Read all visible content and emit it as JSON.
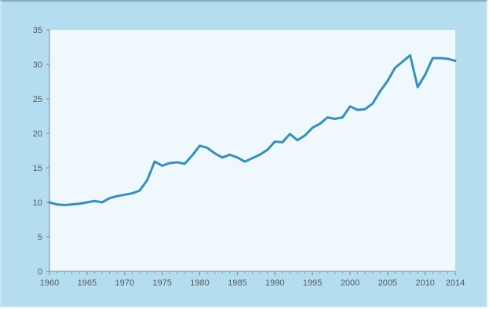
{
  "chart_data": {
    "type": "line",
    "title": "",
    "xlabel": "",
    "ylabel": "",
    "xlim": [
      1960,
      2014
    ],
    "ylim": [
      0,
      35
    ],
    "grid": false,
    "legend": "none",
    "x_ticks": [
      "1960",
      "1965",
      "1970",
      "1975",
      "1980",
      "1985",
      "1990",
      "1995",
      "2000",
      "2005",
      "2010",
      "2014"
    ],
    "y_ticks": [
      "0",
      "5",
      "10",
      "15",
      "20",
      "25",
      "30",
      "35"
    ],
    "colors": {
      "line": "#3a8fb7",
      "plot_bg": "#eef8fd",
      "frame_bg": "#b5ddf0",
      "axis": "#7a8a94"
    },
    "series": [
      {
        "x": [
          1960,
          1961,
          1962,
          1963,
          1964,
          1965,
          1966,
          1967,
          1968,
          1969,
          1970,
          1971,
          1972,
          1973,
          1974,
          1975,
          1976,
          1977,
          1978,
          1979,
          1980,
          1981,
          1982,
          1983,
          1984,
          1985,
          1986,
          1987,
          1988,
          1989,
          1990,
          1991,
          1992,
          1993,
          1994,
          1995,
          1996,
          1997,
          1998,
          1999,
          2000,
          2001,
          2002,
          2003,
          2004,
          2005,
          2006,
          2007,
          2008,
          2009,
          2010,
          2011,
          2012,
          2013,
          2014
        ],
        "values": [
          10.0,
          9.7,
          9.6,
          9.7,
          9.8,
          10.0,
          10.2,
          10.0,
          10.6,
          10.9,
          11.1,
          11.3,
          11.7,
          13.2,
          15.9,
          15.3,
          15.7,
          15.8,
          15.6,
          16.8,
          18.2,
          17.9,
          17.1,
          16.5,
          16.9,
          16.5,
          15.9,
          16.4,
          16.9,
          17.6,
          18.8,
          18.7,
          19.9,
          19.0,
          19.7,
          20.8,
          21.4,
          22.3,
          22.1,
          22.3,
          23.9,
          23.4,
          23.5,
          24.3,
          26.1,
          27.6,
          29.5,
          30.4,
          31.3,
          26.7,
          28.5,
          30.9,
          30.9,
          30.8,
          30.5
        ]
      }
    ]
  }
}
